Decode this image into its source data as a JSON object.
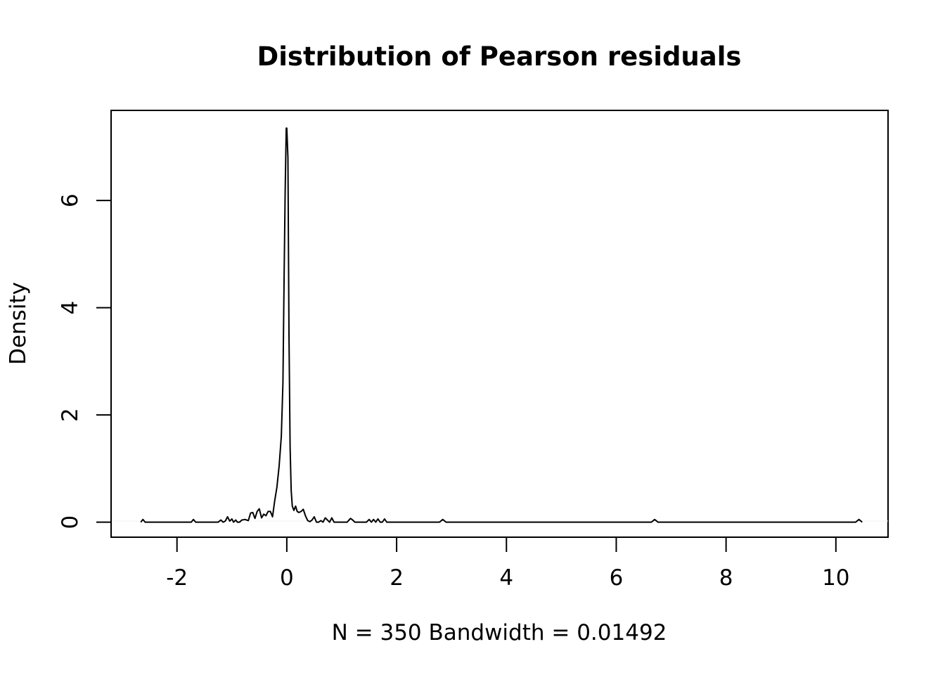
{
  "chart_data": {
    "type": "line",
    "title": "Distribution of Pearson residuals",
    "xlabel": "N = 350   Bandwidth = 0.01492",
    "ylabel": "Density",
    "xlim": [
      -3.2,
      10.95
    ],
    "ylim": [
      -0.28,
      7.68
    ],
    "x_ticks": [
      -2,
      0,
      2,
      4,
      6,
      8,
      10
    ],
    "x_tick_labels": [
      "-2",
      "0",
      "2",
      "4",
      "6",
      "8",
      "10"
    ],
    "y_ticks": [
      0,
      2,
      4,
      6
    ],
    "y_tick_labels": [
      "0",
      "2",
      "4",
      "6"
    ],
    "grid": false,
    "series": [
      {
        "color": "#000000",
        "x": [
          -2.66,
          -2.62,
          -2.58,
          -2.54,
          -2.2,
          -1.8,
          -1.74,
          -1.7,
          -1.66,
          -1.25,
          -1.2,
          -1.16,
          -1.12,
          -1.08,
          -1.04,
          -1.0,
          -0.97,
          -0.93,
          -0.9,
          -0.86,
          -0.82,
          -0.76,
          -0.7,
          -0.66,
          -0.62,
          -0.58,
          -0.54,
          -0.5,
          -0.46,
          -0.42,
          -0.38,
          -0.34,
          -0.3,
          -0.26,
          -0.22,
          -0.18,
          -0.14,
          -0.1,
          -0.07,
          -0.05,
          -0.03,
          -0.01,
          0.0,
          0.02,
          0.04,
          0.06,
          0.08,
          0.1,
          0.13,
          0.16,
          0.19,
          0.22,
          0.26,
          0.3,
          0.34,
          0.38,
          0.42,
          0.46,
          0.5,
          0.54,
          0.58,
          0.62,
          0.66,
          0.7,
          0.74,
          0.78,
          0.82,
          0.86,
          0.9,
          1.1,
          1.16,
          1.2,
          1.24,
          1.28,
          1.45,
          1.5,
          1.54,
          1.58,
          1.62,
          1.66,
          1.7,
          1.74,
          1.78,
          1.82,
          1.86,
          1.9,
          2.78,
          2.84,
          2.9,
          2.96,
          6.64,
          6.7,
          6.76,
          10.36,
          10.42,
          10.48
        ],
        "y": [
          0.0,
          0.05,
          0.0,
          0.0,
          0.0,
          0.0,
          0.0,
          0.05,
          0.0,
          0.0,
          0.04,
          0.0,
          0.02,
          0.1,
          0.02,
          0.06,
          0.0,
          0.04,
          0.0,
          0.0,
          0.04,
          0.05,
          0.03,
          0.17,
          0.18,
          0.07,
          0.2,
          0.25,
          0.08,
          0.15,
          0.12,
          0.2,
          0.2,
          0.1,
          0.4,
          0.65,
          1.05,
          1.6,
          2.6,
          4.5,
          6.2,
          7.35,
          7.35,
          6.8,
          3.5,
          1.4,
          0.6,
          0.3,
          0.22,
          0.3,
          0.2,
          0.18,
          0.2,
          0.24,
          0.12,
          0.03,
          0.01,
          0.04,
          0.1,
          0.0,
          0.0,
          0.03,
          0.0,
          0.08,
          0.04,
          0.0,
          0.08,
          0.0,
          0.0,
          0.0,
          0.07,
          0.04,
          0.0,
          0.0,
          0.0,
          0.05,
          0.0,
          0.05,
          0.0,
          0.06,
          0.0,
          0.0,
          0.06,
          0.0,
          0.0,
          0.0,
          0.0,
          0.05,
          0.0,
          0.0,
          0.0,
          0.05,
          0.0,
          0.0,
          0.05,
          0.0
        ]
      }
    ]
  }
}
